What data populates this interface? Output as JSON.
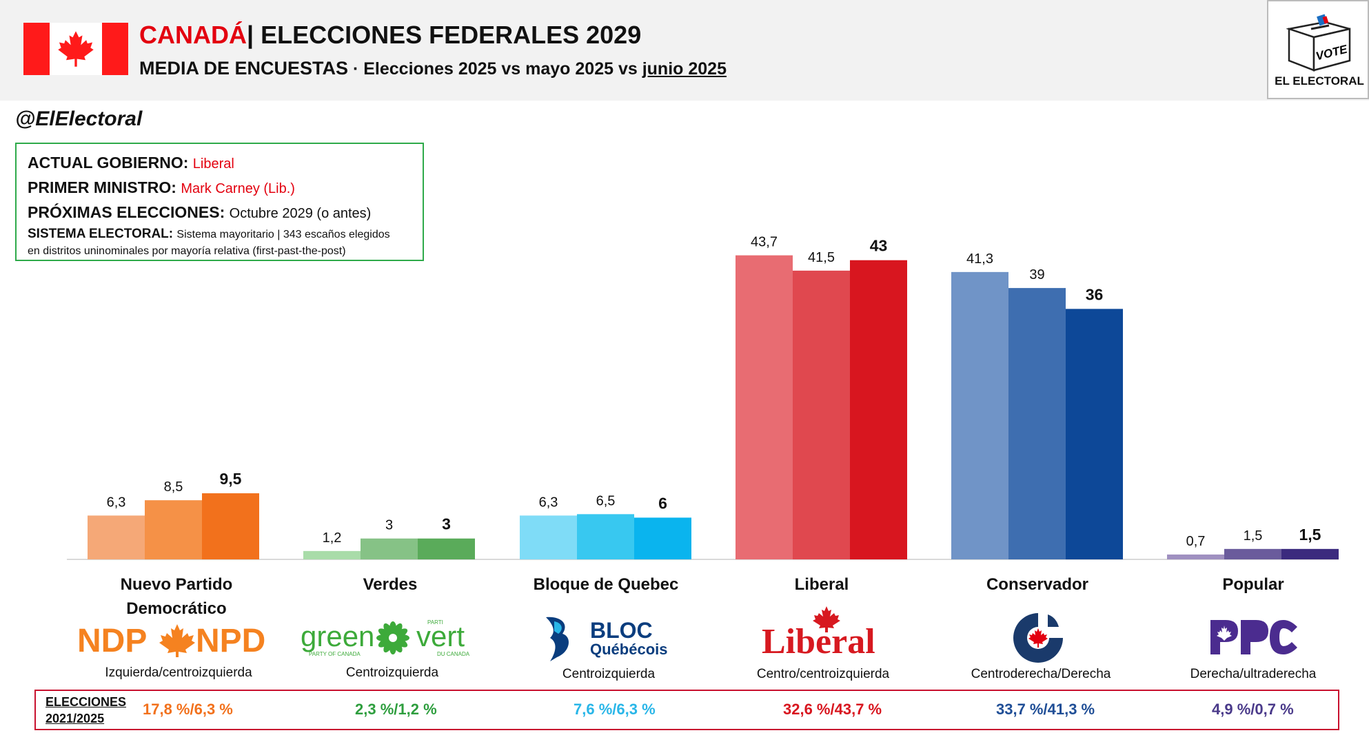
{
  "header": {
    "country": "CANADÁ",
    "title_rest": "| ELECCIONES FEDERALES 2029",
    "subtitle_part1": "MEDIA DE ENCUESTAS",
    "subtitle_part2": " · Elecciones 2025 vs mayo 2025 vs ",
    "subtitle_underlined": "junio 2025",
    "logo_text": "EL ELECTORAL",
    "logo_vote": "VOTE"
  },
  "handle": "@ElElectoral",
  "info": {
    "gov_label": "ACTUAL GOBIERNO: ",
    "gov_value": "Liberal",
    "pm_label": "PRIMER MINISTRO: ",
    "pm_value": "Mark Carney (Lib.)",
    "next_label": "PRÓXIMAS ELECCIONES: ",
    "next_value": "Octubre 2029 (o antes)",
    "sys_label": "SISTEMA ELECTORAL: ",
    "sys_value": "Sistema mayoritario | 343 escaños elegidos",
    "sys_value2": "en distritos uninominales por mayoría relativa (first-past-the-post)"
  },
  "chart_data": {
    "type": "bar",
    "categories": [
      "Nuevo Partido Democrático",
      "Verdes",
      "Bloque de Quebec",
      "Liberal",
      "Conservador",
      "Popular"
    ],
    "series": [
      {
        "values": [
          6.3,
          1.2,
          6.3,
          43.7,
          41.3,
          0.7
        ]
      },
      {
        "values": [
          8.5,
          3,
          6.5,
          41.5,
          39,
          1.5
        ]
      },
      {
        "values": [
          9.5,
          3,
          6,
          43,
          36,
          1.5
        ]
      }
    ],
    "value_labels": [
      [
        "6,3",
        "8,5",
        "9,5"
      ],
      [
        "1,2",
        "3",
        "3"
      ],
      [
        "6,3",
        "6,5",
        "6"
      ],
      [
        "43,7",
        "41,5",
        "43"
      ],
      [
        "41,3",
        "39",
        "36"
      ],
      [
        "0,7",
        "1,5",
        "1,5"
      ]
    ],
    "colors": [
      [
        "#f5a877",
        "#f59147",
        "#f2711c"
      ],
      [
        "#a9dca9",
        "#86c286",
        "#5aab5a"
      ],
      [
        "#7fdcf7",
        "#38c8f0",
        "#0ab4ee"
      ],
      [
        "#e86c72",
        "#e0484f",
        "#d8161f"
      ],
      [
        "#7094c7",
        "#3e6eb0",
        "#0d4898"
      ],
      [
        "#9f90c0",
        "#6a5b9c",
        "#3b2a7e"
      ]
    ],
    "ylim": [
      0,
      50
    ]
  },
  "parties": [
    {
      "label_line1": "Nuevo Partido",
      "label_line2": "Democrático",
      "logo": "NDP✦NPD",
      "ideology": "Izquierda/centroizquierda"
    },
    {
      "label_line1": "Verdes",
      "label_line2": "",
      "logo": "green vert",
      "logo_small1": "PARTY OF CANADA",
      "logo_small2": "DU CANADA",
      "logo_parti": "PARTI",
      "ideology": "Centroizquierda"
    },
    {
      "label_line1": "Bloque de Quebec",
      "label_line2": "",
      "logo_line1": "BLOC",
      "logo_line2": "Québécois",
      "ideology": "Centroizquierda"
    },
    {
      "label_line1": "Liberal",
      "label_line2": "",
      "logo": "Liberal",
      "ideology": "Centro/centroizquierda"
    },
    {
      "label_line1": "Conservador",
      "label_line2": "",
      "ideology": "Centroderecha/Derecha"
    },
    {
      "label_line1": "Popular",
      "label_line2": "",
      "logo": "PPC",
      "ideology": "Derecha/ultraderecha"
    }
  ],
  "results": {
    "title_line1": "ELECCIONES",
    "title_line2": "2021/2025",
    "values": [
      "17,8 %/6,3 %",
      "2,3 %/1,2 %",
      "7,6 %/6,3 %",
      "32,6 %/43,7 %",
      "33,7 %/41,3 %",
      "4,9 %/0,7 %"
    ],
    "colors": [
      "#f2711c",
      "#2e9e3e",
      "#29b6e8",
      "#d8161f",
      "#1f4e96",
      "#4a3a8a"
    ]
  }
}
